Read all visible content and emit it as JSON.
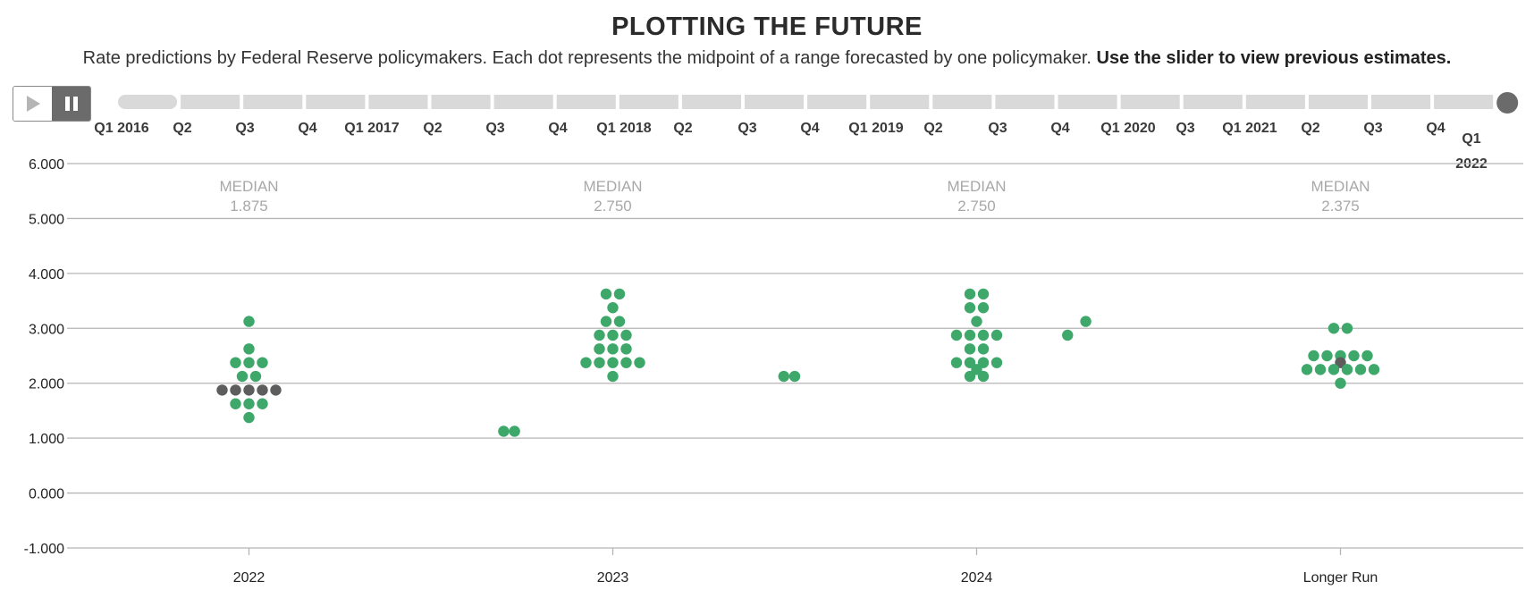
{
  "title": "PLOTTING THE FUTURE",
  "subtitle": {
    "text": "Rate predictions by Federal Reserve policymakers. Each dot represents the midpoint of a range forecasted by one policymaker. ",
    "bold": "Use the slider to view previous estimates."
  },
  "controls": {
    "play_icon": "play-icon",
    "pause_icon": "pause-icon",
    "pause_active": true
  },
  "slider": {
    "labels": [
      "Q1 2016",
      "Q2",
      "Q3",
      "Q4",
      "Q1 2017",
      "Q2",
      "Q3",
      "Q4",
      "Q1 2018",
      "Q2",
      "Q3",
      "Q4",
      "Q1 2019",
      "Q2",
      "Q3",
      "Q4",
      "Q1 2020",
      "Q3",
      "Q1 2021",
      "Q2",
      "Q3",
      "Q4",
      "Q1 2022"
    ],
    "selected": "Q1 2022",
    "colors": {
      "track": "#d9d9d9",
      "handle": "#6b6b6b"
    }
  },
  "chart_data": {
    "type": "scatter",
    "title": "PLOTTING THE FUTURE",
    "categories": [
      "2022",
      "2023",
      "2024",
      "Longer Run"
    ],
    "y_ticks": [
      "6.000",
      "5.000",
      "4.000",
      "3.000",
      "2.000",
      "1.000",
      "0.000",
      "-1.000"
    ],
    "ylim": [
      -1,
      6
    ],
    "grid": true,
    "colors": {
      "dot": "#3ea86b",
      "median_dot": "#5d5d5d",
      "grid": "#b5b5b5",
      "median_text": "#a8a8a8"
    },
    "median_label": "MEDIAN",
    "medians": [
      "1.875",
      "2.750",
      "2.750",
      "2.375"
    ],
    "points": [
      {
        "x": 2022,
        "y": 3.125
      },
      {
        "x": 2022,
        "y": 2.625
      },
      {
        "x": 2022,
        "y": 2.375
      },
      {
        "x": 2022,
        "y": 2.375
      },
      {
        "x": 2022,
        "y": 2.375
      },
      {
        "x": 2022,
        "y": 2.125
      },
      {
        "x": 2022,
        "y": 2.125
      },
      {
        "x": 2022,
        "y": 1.875,
        "median": true
      },
      {
        "x": 2022,
        "y": 1.875,
        "median": true
      },
      {
        "x": 2022,
        "y": 1.875,
        "median": true
      },
      {
        "x": 2022,
        "y": 1.875,
        "median": true
      },
      {
        "x": 2022,
        "y": 1.875,
        "median": true
      },
      {
        "x": 2022,
        "y": 1.625
      },
      {
        "x": 2022,
        "y": 1.625
      },
      {
        "x": 2022,
        "y": 1.625
      },
      {
        "x": 2022,
        "y": 1.375
      },
      {
        "x": 2022.7,
        "y": 1.125
      },
      {
        "x": 2022.73,
        "y": 1.125
      },
      {
        "x": 2023,
        "y": 3.625
      },
      {
        "x": 2023,
        "y": 3.625
      },
      {
        "x": 2023,
        "y": 3.375
      },
      {
        "x": 2023,
        "y": 3.125
      },
      {
        "x": 2023,
        "y": 3.125
      },
      {
        "x": 2023,
        "y": 2.875
      },
      {
        "x": 2023,
        "y": 2.875
      },
      {
        "x": 2023,
        "y": 2.875
      },
      {
        "x": 2023,
        "y": 2.625
      },
      {
        "x": 2023,
        "y": 2.625
      },
      {
        "x": 2023,
        "y": 2.625
      },
      {
        "x": 2023,
        "y": 2.375
      },
      {
        "x": 2023,
        "y": 2.375
      },
      {
        "x": 2023,
        "y": 2.375
      },
      {
        "x": 2023,
        "y": 2.375
      },
      {
        "x": 2023,
        "y": 2.375
      },
      {
        "x": 2023,
        "y": 2.125
      },
      {
        "x": 2023.47,
        "y": 2.125
      },
      {
        "x": 2023.5,
        "y": 2.125
      },
      {
        "x": 2024,
        "y": 3.625
      },
      {
        "x": 2024,
        "y": 3.625
      },
      {
        "x": 2024,
        "y": 3.375
      },
      {
        "x": 2024,
        "y": 3.375
      },
      {
        "x": 2024,
        "y": 3.125
      },
      {
        "x": 2024,
        "y": 2.875
      },
      {
        "x": 2024,
        "y": 2.875
      },
      {
        "x": 2024,
        "y": 2.875
      },
      {
        "x": 2024,
        "y": 2.875
      },
      {
        "x": 2024,
        "y": 2.625
      },
      {
        "x": 2024,
        "y": 2.625
      },
      {
        "x": 2024,
        "y": 2.375
      },
      {
        "x": 2024,
        "y": 2.375
      },
      {
        "x": 2024,
        "y": 2.375
      },
      {
        "x": 2024,
        "y": 2.375
      },
      {
        "x": 2024,
        "y": 2.25
      },
      {
        "x": 2024,
        "y": 2.125
      },
      {
        "x": 2024,
        "y": 2.125
      },
      {
        "x": 2024.25,
        "y": 2.875
      },
      {
        "x": 2024.3,
        "y": 3.125
      },
      {
        "x": "Longer Run",
        "y": 3.0
      },
      {
        "x": "Longer Run",
        "y": 3.0
      },
      {
        "x": "Longer Run",
        "y": 2.5
      },
      {
        "x": "Longer Run",
        "y": 2.5
      },
      {
        "x": "Longer Run",
        "y": 2.5
      },
      {
        "x": "Longer Run",
        "y": 2.5
      },
      {
        "x": "Longer Run",
        "y": 2.5
      },
      {
        "x": "Longer Run",
        "y": 2.375,
        "median": true
      },
      {
        "x": "Longer Run",
        "y": 2.25
      },
      {
        "x": "Longer Run",
        "y": 2.25
      },
      {
        "x": "Longer Run",
        "y": 2.25
      },
      {
        "x": "Longer Run",
        "y": 2.25
      },
      {
        "x": "Longer Run",
        "y": 2.25
      },
      {
        "x": "Longer Run",
        "y": 2.25
      },
      {
        "x": "Longer Run",
        "y": 2.0
      }
    ]
  }
}
